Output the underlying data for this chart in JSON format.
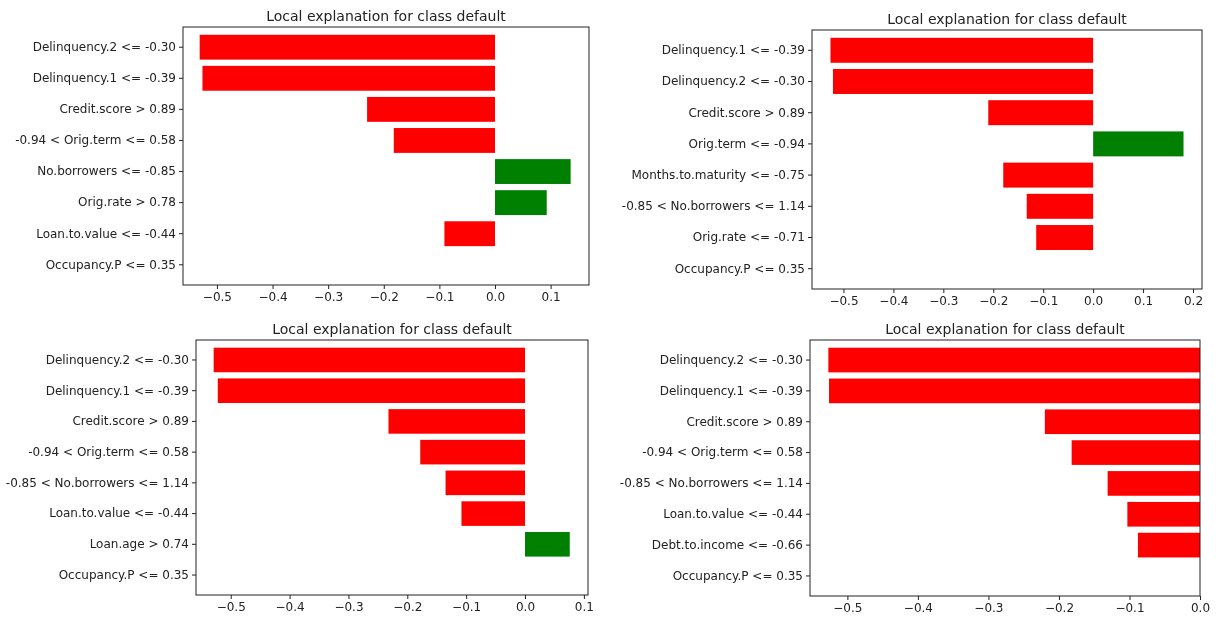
{
  "chart_data": [
    {
      "type": "bar",
      "orientation": "horizontal",
      "title": "Local explanation for class default",
      "categories": [
        "Delinquency.2 <= -0.30",
        "Delinquency.1 <= -0.39",
        "Credit.score > 0.89",
        "-0.94 < Orig.term <= 0.58",
        "No.borrowers <= -0.85",
        "Orig.rate > 0.78",
        "Loan.to.value <= -0.44",
        "Occupancy.P <= 0.35"
      ],
      "values": [
        -0.531,
        -0.526,
        -0.23,
        -0.182,
        0.136,
        0.093,
        -0.091,
        0
      ],
      "colors": [
        "#ff0000",
        "#ff0000",
        "#ff0000",
        "#ff0000",
        "#008000",
        "#008000",
        "#ff0000",
        "#ff0000"
      ],
      "xlim": [
        -0.561,
        0.169
      ],
      "xticks": [
        {
          "value": -0.5,
          "label": "−0.5"
        },
        {
          "value": -0.4,
          "label": "−0.4"
        },
        {
          "value": -0.3,
          "label": "−0.3"
        },
        {
          "value": -0.2,
          "label": "−0.2"
        },
        {
          "value": -0.1,
          "label": "−0.1"
        },
        {
          "value": 0,
          "label": "0.0"
        },
        {
          "value": 0.1,
          "label": "0.1"
        }
      ]
    },
    {
      "type": "bar",
      "orientation": "horizontal",
      "title": "Local explanation for class default",
      "categories": [
        "Delinquency.1 <= -0.39",
        "Delinquency.2 <= -0.30",
        "Credit.score > 0.89",
        "Orig.term <= -0.94",
        "Months.to.maturity <= -0.75",
        "-0.85 < No.borrowers <= 1.14",
        "Orig.rate <= -0.71",
        "Occupancy.P <= 0.35"
      ],
      "values": [
        -0.526,
        -0.521,
        -0.21,
        0.181,
        -0.18,
        -0.133,
        -0.114,
        0
      ],
      "colors": [
        "#ff0000",
        "#ff0000",
        "#ff0000",
        "#008000",
        "#ff0000",
        "#ff0000",
        "#ff0000",
        "#ff0000"
      ],
      "xlim": [
        -0.563,
        0.218
      ],
      "xticks": [
        {
          "value": -0.5,
          "label": "−0.5"
        },
        {
          "value": -0.4,
          "label": "−0.4"
        },
        {
          "value": -0.3,
          "label": "−0.3"
        },
        {
          "value": -0.2,
          "label": "−0.2"
        },
        {
          "value": -0.1,
          "label": "−0.1"
        },
        {
          "value": 0,
          "label": "0.0"
        },
        {
          "value": 0.1,
          "label": "0.1"
        },
        {
          "value": 0.2,
          "label": "0.2"
        }
      ]
    },
    {
      "type": "bar",
      "orientation": "horizontal",
      "title": "Local explanation for class default",
      "categories": [
        "Delinquency.2 <= -0.30",
        "Delinquency.1 <= -0.39",
        "Credit.score > 0.89",
        "-0.94 < Orig.term <= 0.58",
        "-0.85 < No.borrowers <= 1.14",
        "Loan.to.value <= -0.44",
        "Loan.age > 0.74",
        "Occupancy.P <= 0.35"
      ],
      "values": [
        -0.529,
        -0.522,
        -0.232,
        -0.178,
        -0.135,
        -0.108,
        0.076,
        0
      ],
      "colors": [
        "#ff0000",
        "#ff0000",
        "#ff0000",
        "#ff0000",
        "#ff0000",
        "#ff0000",
        "#008000",
        "#ff0000"
      ],
      "xlim": [
        -0.559,
        0.107
      ],
      "xticks": [
        {
          "value": -0.5,
          "label": "−0.5"
        },
        {
          "value": -0.4,
          "label": "−0.4"
        },
        {
          "value": -0.3,
          "label": "−0.3"
        },
        {
          "value": -0.2,
          "label": "−0.2"
        },
        {
          "value": -0.1,
          "label": "−0.1"
        },
        {
          "value": 0,
          "label": "0.0"
        },
        {
          "value": 0.1,
          "label": "0.1"
        }
      ]
    },
    {
      "type": "bar",
      "orientation": "horizontal",
      "title": "Local explanation for class default",
      "categories": [
        "Delinquency.2 <= -0.30",
        "Delinquency.1 <= -0.39",
        "Credit.score > 0.89",
        "-0.94 < Orig.term <= 0.58",
        "-0.85 < No.borrowers <= 1.14",
        "Loan.to.value <= -0.44",
        "Debt.to.income <= -0.66",
        "Occupancy.P <= 0.35"
      ],
      "values": [
        -0.527,
        -0.526,
        -0.22,
        -0.182,
        -0.131,
        -0.103,
        -0.088,
        0
      ],
      "colors": [
        "#ff0000",
        "#ff0000",
        "#ff0000",
        "#ff0000",
        "#ff0000",
        "#ff0000",
        "#ff0000",
        "#ff0000"
      ],
      "xlim": [
        -0.553,
        0
      ],
      "xticks": [
        {
          "value": -0.5,
          "label": "−0.5"
        },
        {
          "value": -0.4,
          "label": "−0.4"
        },
        {
          "value": -0.3,
          "label": "−0.3"
        },
        {
          "value": -0.2,
          "label": "−0.2"
        },
        {
          "value": -0.1,
          "label": "−0.1"
        },
        {
          "value": 0,
          "label": "0.0"
        }
      ]
    }
  ]
}
